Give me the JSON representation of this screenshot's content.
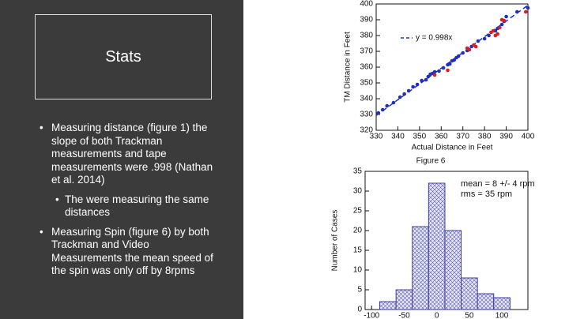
{
  "slide": {
    "title": "Stats",
    "bullets": [
      {
        "text": "Measuring distance (figure 1) the slope of both Trackman measurements and tape measurements were .998 (Nathan et al. 2014)",
        "level": 1
      },
      {
        "text": "The were measuring the same distances",
        "level": 2
      },
      {
        "text": "Measuring Spin (figure 6) by both Trackman and Video Measurements the mean speed of the spin was only off by 8rpms",
        "level": 1
      }
    ]
  },
  "chart_data": [
    {
      "type": "scatter",
      "x_label": "Actual  Distance in Feet",
      "y_label": "TM Distance in Feet",
      "xlim": [
        330,
        400
      ],
      "ylim": [
        320,
        400
      ],
      "xticks": [
        330,
        340,
        350,
        360,
        370,
        380,
        390,
        400
      ],
      "yticks": [
        320,
        330,
        340,
        350,
        360,
        370,
        380,
        390,
        400
      ],
      "fit": {
        "label": "y = 0.998x",
        "slope": 0.998,
        "color": "#1f2fbf"
      },
      "series": [
        {
          "color": "#1f2fbf",
          "x": [
            331,
            333,
            335,
            338,
            341,
            343,
            345,
            347,
            349,
            351,
            353,
            354,
            355,
            356,
            357,
            359,
            361,
            363,
            364,
            365,
            366,
            367,
            368,
            370,
            372,
            374,
            377,
            380,
            382,
            385,
            386,
            388,
            389,
            390,
            395,
            400
          ],
          "values": [
            331,
            333,
            335.5,
            337.5,
            341,
            343,
            345,
            347.5,
            349,
            351.5,
            352,
            354,
            355.5,
            356,
            357,
            357.5,
            359.5,
            361.5,
            362,
            364,
            364.5,
            366,
            367,
            369,
            370.5,
            373,
            376.5,
            378,
            380,
            383,
            384.5,
            387,
            389,
            392,
            395,
            397.5
          ]
        },
        {
          "color": "#d42020",
          "x": [
            357,
            363,
            372,
            373,
            375,
            376,
            383,
            384,
            385,
            386,
            387,
            388,
            389,
            399
          ],
          "values": [
            355,
            358,
            372,
            371,
            374,
            373,
            382,
            383,
            380,
            381,
            385,
            390,
            389.5,
            395
          ]
        }
      ]
    },
    {
      "type": "histogram",
      "title": "Figure 6",
      "y_label": "Number of Cases",
      "annotations": [
        "mean = 8 +/- 4 rpm",
        "rms = 35 rpm"
      ],
      "xlim": [
        -110,
        140
      ],
      "ylim": [
        0,
        35
      ],
      "xticks": [
        -100,
        -50,
        0,
        50,
        100
      ],
      "yticks": [
        0,
        5,
        10,
        15,
        20,
        25,
        30,
        35
      ],
      "bins": [
        -87.5,
        -62.5,
        -37.5,
        -12.5,
        12.5,
        37.5,
        62.5,
        87.5,
        112.5
      ],
      "values": [
        2,
        5,
        21,
        32,
        20,
        8,
        4,
        3
      ],
      "color": "#3a3aa0"
    }
  ]
}
